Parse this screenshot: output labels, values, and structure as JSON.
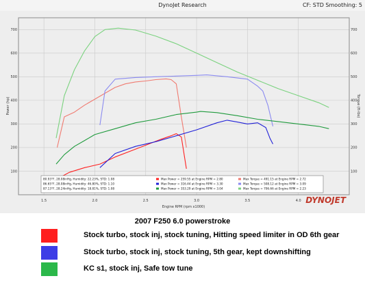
{
  "header": {
    "title": "DynoJet Research",
    "cf": "CF: STD Smoothing: 5"
  },
  "caption": "2007 F250 6.0 powerstroke",
  "legend": [
    {
      "label": "Stock turbo, stock inj, stock tuning, Hitting speed limiter in OD  6th gear",
      "color": "#ff1f1f"
    },
    {
      "label": "Stock turbo, stock inj, stock tuning, 5th gear, kept downshifting",
      "color": "#3d3de6"
    },
    {
      "label": "KC s1, stock inj, Safe tow tune",
      "color": "#2bb84a"
    }
  ],
  "info_box": {
    "weather": [
      "80.93°F, 28.08inHg, Humidity: 22.23%, STD: 1.08",
      "86.65°F, 28.08inHg, Humidity: 46.80%, STD: 1.10",
      "87.13°F, 28.24inHg, Humidity: 18.81%, STD: 1.08"
    ],
    "power": [
      "Max Power = 259.55 at Engine RPM = 2.80",
      "Max Power = 316.44 at Engine RPM = 3.30",
      "Max Power = 353.29 at Engine RPM = 3.04"
    ],
    "torque": [
      "Max Torque = 491.15 at Engine RPM = 2.72",
      "Max Torque = 508.12 at Engine RPM = 3.09",
      "Max Torque = 706.66 at Engine RPM = 2.23"
    ]
  },
  "watermark": "DYNOJET",
  "chart_data": {
    "type": "line",
    "title": "",
    "xlabel": "Engine RPM (rpm x1000)",
    "ylabel_left": "Power (hp)",
    "ylabel_right": "Torque (ft-lbs)",
    "xlim": [
      1.25,
      4.5
    ],
    "ylim": [
      0,
      750
    ],
    "xticks": [
      1.5,
      2.0,
      2.5,
      3.0,
      3.5,
      4.0
    ],
    "yticks": [
      100,
      200,
      300,
      400,
      500,
      600,
      700
    ],
    "grid": true,
    "series": [
      {
        "kind": "power",
        "color": "#ff2020",
        "x": [
          1.62,
          1.75,
          1.9,
          2.05,
          2.2,
          2.35,
          2.5,
          2.65,
          2.75,
          2.8,
          2.85,
          2.9
        ],
        "y": [
          65,
          95,
          115,
          130,
          160,
          185,
          210,
          235,
          250,
          259,
          245,
          110
        ]
      },
      {
        "kind": "torque",
        "color": "#f07a70",
        "x": [
          1.63,
          1.7,
          1.8,
          1.9,
          2.0,
          2.1,
          2.2,
          2.3,
          2.4,
          2.5,
          2.6,
          2.7,
          2.75,
          2.8,
          2.85,
          2.9
        ],
        "y": [
          200,
          330,
          350,
          380,
          405,
          430,
          455,
          470,
          478,
          482,
          488,
          491,
          488,
          470,
          330,
          200
        ]
      },
      {
        "kind": "power",
        "color": "#2020d8",
        "x": [
          2.05,
          2.2,
          2.4,
          2.6,
          2.8,
          3.0,
          3.2,
          3.3,
          3.4,
          3.5,
          3.6,
          3.68,
          3.72,
          3.75
        ],
        "y": [
          115,
          175,
          205,
          225,
          250,
          275,
          305,
          316,
          308,
          300,
          305,
          285,
          240,
          215
        ]
      },
      {
        "kind": "torque",
        "color": "#8a8af0",
        "x": [
          2.05,
          2.1,
          2.2,
          2.4,
          2.6,
          2.8,
          3.0,
          3.1,
          3.3,
          3.5,
          3.6,
          3.65,
          3.7,
          3.75
        ],
        "y": [
          295,
          440,
          490,
          497,
          500,
          503,
          506,
          508,
          500,
          490,
          460,
          440,
          380,
          290
        ]
      },
      {
        "kind": "power",
        "color": "#1e9a3c",
        "x": [
          1.62,
          1.7,
          1.8,
          1.9,
          2.0,
          2.2,
          2.4,
          2.6,
          2.8,
          3.0,
          3.04,
          3.2,
          3.4,
          3.6,
          3.8,
          4.0,
          4.2,
          4.3
        ],
        "y": [
          130,
          170,
          205,
          230,
          255,
          280,
          305,
          320,
          340,
          350,
          353,
          348,
          335,
          320,
          310,
          300,
          290,
          280
        ]
      },
      {
        "kind": "torque",
        "color": "#7ad27e",
        "x": [
          1.62,
          1.7,
          1.8,
          1.9,
          2.0,
          2.1,
          2.23,
          2.4,
          2.6,
          2.8,
          3.0,
          3.2,
          3.4,
          3.6,
          3.8,
          4.0,
          4.2,
          4.3
        ],
        "y": [
          240,
          420,
          530,
          610,
          670,
          700,
          706,
          698,
          672,
          640,
          600,
          560,
          520,
          485,
          450,
          420,
          390,
          370
        ]
      }
    ]
  }
}
